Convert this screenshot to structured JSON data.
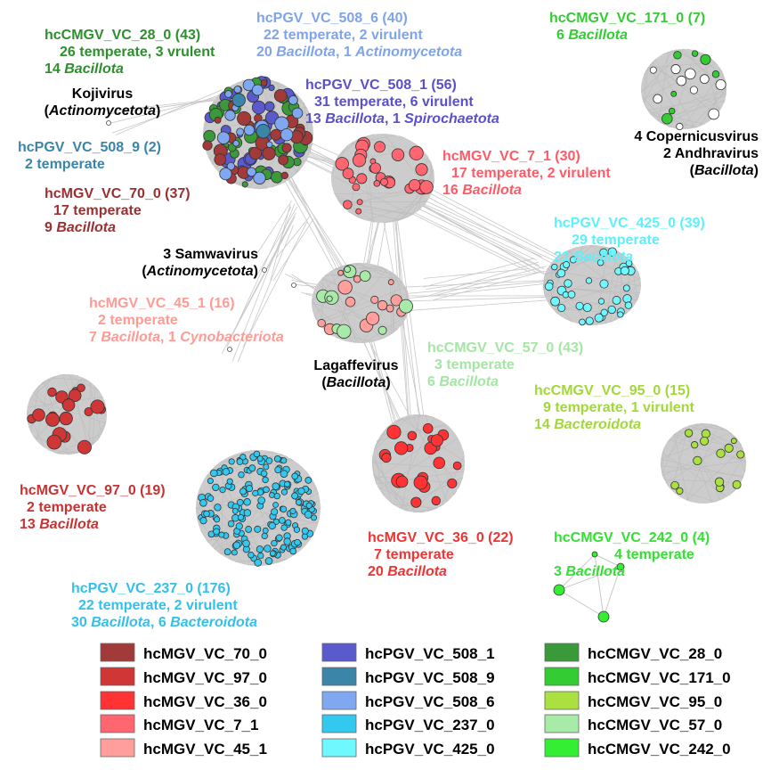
{
  "clusters": [
    {
      "id": "hcMGV_VC_70_0",
      "color": "#a33a3a",
      "label_color": "#9c2f2f",
      "lines": [
        [
          {
            "t": "hcMGV_VC_70_0 (37)"
          }
        ],
        [
          {
            "t": "17 temperate"
          }
        ],
        [
          {
            "t": "9 "
          },
          {
            "t": "Bacillota",
            "i": true
          }
        ]
      ]
    },
    {
      "id": "hcMGV_VC_97_0",
      "color": "#d13636",
      "label_color": "#c83232",
      "lines": [
        [
          {
            "t": "hcMGV_VC_97_0 (19)"
          }
        ],
        [
          {
            "t": "2 temperate"
          }
        ],
        [
          {
            "t": "13 "
          },
          {
            "t": "Bacillota",
            "i": true
          }
        ]
      ]
    },
    {
      "id": "hcMGV_VC_36_0",
      "color": "#ff3333",
      "label_color": "#f03333",
      "lines": [
        [
          {
            "t": "hcMGV_VC_36_0 (22)"
          }
        ],
        [
          {
            "t": "7 temperate"
          }
        ],
        [
          {
            "t": "20 "
          },
          {
            "t": "Bacillota",
            "i": true
          }
        ]
      ]
    },
    {
      "id": "hcMGV_VC_7_1",
      "color": "#ff6670",
      "label_color": "#ff5a66",
      "lines": [
        [
          {
            "t": "hcMGV_VC_7_1 (30)"
          }
        ],
        [
          {
            "t": "17 temperate, 2 virulent"
          }
        ],
        [
          {
            "t": "16 "
          },
          {
            "t": "Bacillota",
            "i": true
          }
        ]
      ]
    },
    {
      "id": "hcMGV_VC_45_1",
      "color": "#ff9e9a",
      "label_color": "#ff9a94",
      "lines": [
        [
          {
            "t": "hcMGV_VC_45_1 (16)"
          }
        ],
        [
          {
            "t": "2 temperate"
          }
        ],
        [
          {
            "t": "7 "
          },
          {
            "t": "Bacillota",
            "i": true
          },
          {
            "t": ", 1 "
          },
          {
            "t": "Cynobacteriota",
            "i": true
          }
        ]
      ]
    },
    {
      "id": "hcPGV_VC_508_1",
      "color": "#5a5acd",
      "label_color": "#5a50c8",
      "lines": [
        [
          {
            "t": "hcPGV_VC_508_1 (56)"
          }
        ],
        [
          {
            "t": "31 temperate, 6 virulent"
          }
        ],
        [
          {
            "t": "13 "
          },
          {
            "t": "Bacillota",
            "i": true
          },
          {
            "t": ", 1 "
          },
          {
            "t": "Spirochaetota",
            "i": true
          }
        ]
      ]
    },
    {
      "id": "hcPGV_VC_508_9",
      "color": "#3a85a8",
      "label_color": "#3a85a8",
      "lines": [
        [
          {
            "t": "hcPGV_VC_508_9 (2)"
          }
        ],
        [
          {
            "t": "2 temperate"
          }
        ]
      ]
    },
    {
      "id": "hcPGV_VC_508_6",
      "color": "#80a8f0",
      "label_color": "#7fa4ea",
      "lines": [
        [
          {
            "t": "hcPGV_VC_508_6 (40)"
          }
        ],
        [
          {
            "t": "22 temperate, 2 virulent"
          }
        ],
        [
          {
            "t": "20 "
          },
          {
            "t": "Bacillota",
            "i": true
          },
          {
            "t": ", 1 "
          },
          {
            "t": "Actinomycetota",
            "i": true
          }
        ]
      ]
    },
    {
      "id": "hcPGV_VC_237_0",
      "color": "#33c8f0",
      "label_color": "#33c0ea",
      "lines": [
        [
          {
            "t": "hcPGV_VC_237_0 (176)"
          }
        ],
        [
          {
            "t": "22 temperate, 2 virulent"
          }
        ],
        [
          {
            "t": "30 "
          },
          {
            "t": "Bacillota",
            "i": true
          },
          {
            "t": ", 6 "
          },
          {
            "t": "Bacteroidota",
            "i": true
          }
        ]
      ]
    },
    {
      "id": "hcPGV_VC_425_0",
      "color": "#70f8ff",
      "label_color": "#5ef0fa",
      "lines": [
        [
          {
            "t": "hcPGV_VC_425_0 (39)"
          }
        ],
        [
          {
            "t": "29 temperate"
          }
        ],
        [
          {
            "t": "21 "
          },
          {
            "t": "Bacillota",
            "i": true
          }
        ]
      ]
    },
    {
      "id": "hcCMGV_VC_28_0",
      "color": "#3a9a3a",
      "label_color": "#2e8f2e",
      "lines": [
        [
          {
            "t": "hcCMGV_VC_28_0 (43)"
          }
        ],
        [
          {
            "t": "26 temperate, 3 vrulent"
          }
        ],
        [
          {
            "t": "14 "
          },
          {
            "t": "Bacillota",
            "i": true
          }
        ]
      ]
    },
    {
      "id": "hcCMGV_VC_171_0",
      "color": "#33cc33",
      "label_color": "#33cc33",
      "lines": [
        [
          {
            "t": "hcCMGV_VC_171_0 (7)"
          }
        ],
        [
          {
            "t": "6 "
          },
          {
            "t": "Bacillota",
            "i": true
          }
        ]
      ]
    },
    {
      "id": "hcCMGV_VC_95_0",
      "color": "#aae040",
      "label_color": "#a2d83a",
      "lines": [
        [
          {
            "t": "hcCMGV_VC_95_0 (15)"
          }
        ],
        [
          {
            "t": "9 temperate, 1 virulent"
          }
        ],
        [
          {
            "t": "14 "
          },
          {
            "t": "Bacteroidota",
            "i": true
          }
        ]
      ]
    },
    {
      "id": "hcCMGV_VC_57_0",
      "color": "#a8eaa8",
      "label_color": "#a4e6a4",
      "lines": [
        [
          {
            "t": "hcCMGV_VC_57_0 (43)"
          }
        ],
        [
          {
            "t": "3 temperate"
          }
        ],
        [
          {
            "t": "6 "
          },
          {
            "t": "Bacillota",
            "i": true
          }
        ]
      ]
    },
    {
      "id": "hcCMGV_VC_242_0",
      "color": "#33ee33",
      "label_color": "#33e033",
      "lines": [
        [
          {
            "t": "hcCMGV_VC_242_0 (4)"
          }
        ],
        [
          {
            "t": "4 temperate"
          }
        ],
        [
          {
            "t": "3 "
          },
          {
            "t": "Bacillota",
            "i": true
          }
        ]
      ]
    }
  ],
  "annotations": [
    {
      "id": "kojivirus",
      "lines": [
        [
          {
            "t": "Kojivirus"
          }
        ],
        [
          {
            "t": "("
          },
          {
            "t": "Actinomycetota",
            "i": true
          },
          {
            "t": ")"
          }
        ]
      ]
    },
    {
      "id": "samwavirus",
      "lines": [
        [
          {
            "t": "3 Samwavirus"
          }
        ],
        [
          {
            "t": "("
          },
          {
            "t": "Actinomycetota",
            "i": true
          },
          {
            "t": ")"
          }
        ]
      ]
    },
    {
      "id": "lagaffevirus",
      "lines": [
        [
          {
            "t": "Lagaffevirus"
          }
        ],
        [
          {
            "t": "("
          },
          {
            "t": "Bacillota",
            "i": true
          },
          {
            "t": ")"
          }
        ]
      ]
    },
    {
      "id": "copernicusvirus",
      "lines": [
        [
          {
            "t": "4 Copernicusvirus"
          }
        ],
        [
          {
            "t": "2 Andhravirus"
          }
        ],
        [
          {
            "t": "("
          },
          {
            "t": "Bacillota",
            "i": true
          },
          {
            "t": ")"
          }
        ]
      ]
    }
  ],
  "legend": {
    "columns": [
      [
        "hcMGV_VC_70_0",
        "hcMGV_VC_97_0",
        "hcMGV_VC_36_0",
        "hcMGV_VC_7_1",
        "hcMGV_VC_45_1"
      ],
      [
        "hcPGV_VC_508_1",
        "hcPGV_VC_508_9",
        "hcPGV_VC_508_6",
        "hcPGV_VC_237_0",
        "hcPGV_VC_425_0"
      ],
      [
        "hcCMGV_VC_28_0",
        "hcCMGV_VC_171_0",
        "hcCMGV_VC_95_0",
        "hcCMGV_VC_57_0",
        "hcCMGV_VC_242_0"
      ]
    ]
  },
  "edge_color": "#c8c8c8",
  "unclustered_node_color": "#ffffff"
}
